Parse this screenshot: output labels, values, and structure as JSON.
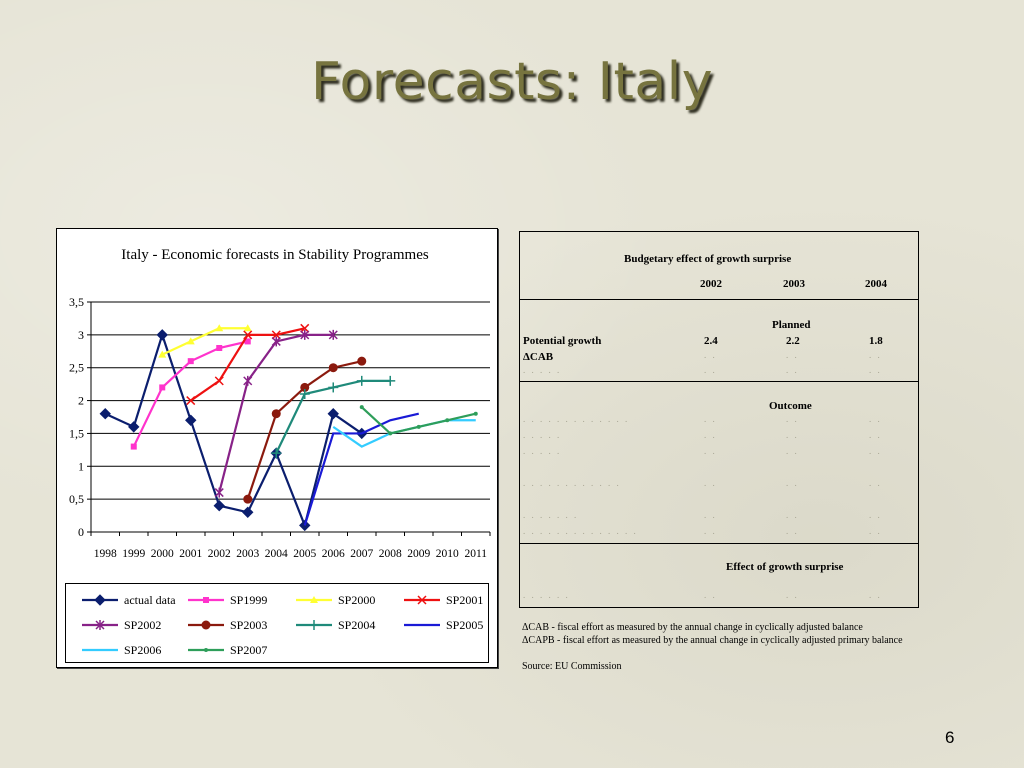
{
  "slide": {
    "title": "Forecasts: Italy",
    "page_number": "6"
  },
  "chart_data": {
    "type": "line",
    "title": "Italy - Economic forecasts in Stability Programmes",
    "xlabel": "",
    "ylabel": "",
    "x": [
      "1998",
      "1999",
      "2000",
      "2001",
      "2002",
      "2003",
      "2004",
      "2005",
      "2006",
      "2007",
      "2008",
      "2009",
      "2010",
      "2011"
    ],
    "ylim": [
      0,
      3.5
    ],
    "yticks": [
      "0",
      "0,5",
      "1",
      "1,5",
      "2",
      "2,5",
      "3",
      "3,5"
    ],
    "grid": true,
    "legend_position": "bottom",
    "series": [
      {
        "name": "actual data",
        "color": "#0b1e6e",
        "marker": "diamond",
        "values": [
          1.8,
          1.6,
          3.0,
          1.7,
          0.4,
          0.3,
          1.2,
          0.1,
          1.8,
          1.5,
          null,
          null,
          null,
          null
        ]
      },
      {
        "name": "SP1999",
        "color": "#ff33cc",
        "marker": "square",
        "values": [
          null,
          1.3,
          2.2,
          2.6,
          2.8,
          2.9,
          null,
          null,
          null,
          null,
          null,
          null,
          null,
          null
        ]
      },
      {
        "name": "SP2000",
        "color": "#ffff33",
        "marker": "triangle",
        "values": [
          null,
          null,
          2.7,
          2.9,
          3.1,
          3.1,
          null,
          null,
          null,
          null,
          null,
          null,
          null,
          null
        ]
      },
      {
        "name": "SP2001",
        "color": "#ee1111",
        "marker": "x",
        "values": [
          null,
          null,
          null,
          2.0,
          2.3,
          3.0,
          3.0,
          3.1,
          null,
          null,
          null,
          null,
          null,
          null
        ]
      },
      {
        "name": "SP2002",
        "color": "#882288",
        "marker": "star",
        "values": [
          null,
          null,
          null,
          null,
          0.6,
          2.3,
          2.9,
          3.0,
          3.0,
          null,
          null,
          null,
          null,
          null
        ]
      },
      {
        "name": "SP2003",
        "color": "#8b1a0e",
        "marker": "circle",
        "values": [
          null,
          null,
          null,
          null,
          null,
          0.5,
          1.8,
          2.2,
          2.5,
          2.6,
          null,
          null,
          null,
          null
        ]
      },
      {
        "name": "SP2004",
        "color": "#1f8a7a",
        "marker": "plus",
        "values": [
          null,
          null,
          null,
          null,
          null,
          null,
          1.2,
          2.1,
          2.2,
          2.3,
          2.3,
          null,
          null,
          null
        ]
      },
      {
        "name": "SP2005",
        "color": "#1a1ad6",
        "marker": "none",
        "values": [
          null,
          null,
          null,
          null,
          null,
          null,
          null,
          0.1,
          1.5,
          1.5,
          1.7,
          1.8,
          null,
          null
        ]
      },
      {
        "name": "SP2006",
        "color": "#33ccff",
        "marker": "none",
        "values": [
          null,
          null,
          null,
          null,
          null,
          null,
          null,
          null,
          1.6,
          1.3,
          1.5,
          1.6,
          1.7,
          1.7
        ]
      },
      {
        "name": "SP2007",
        "color": "#2e9e5a",
        "marker": "dot",
        "values": [
          null,
          null,
          null,
          null,
          null,
          null,
          null,
          null,
          null,
          1.9,
          1.5,
          1.6,
          1.7,
          1.8
        ]
      }
    ]
  },
  "table": {
    "title": "Budgetary effect of growth surprise",
    "years": [
      "2002",
      "2003",
      "2004"
    ],
    "sections": {
      "planned": "Planned",
      "outcome": "Outcome",
      "effect": "Effect of growth surprise"
    },
    "rows": {
      "potential_growth": {
        "label": "Potential growth",
        "values": [
          "2.4",
          "2.2",
          "1.8"
        ]
      },
      "dcab": {
        "label": "ΔCAB"
      }
    }
  },
  "notes": {
    "dcab": "ΔCAB - fiscal effort as measured by the annual change in cyclically adjusted balance",
    "dcapb": "ΔCAPB - fiscal effort as measured by the annual change in cyclically adjusted primary balance",
    "source": "Source: EU Commission"
  }
}
